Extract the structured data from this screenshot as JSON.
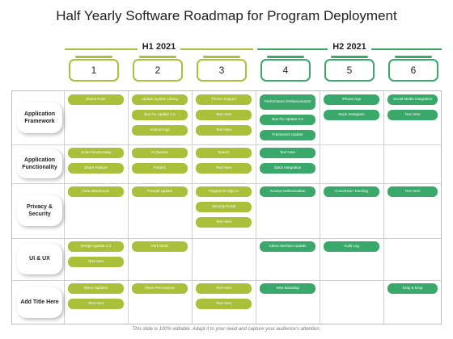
{
  "title": "Half Yearly Software Roadmap for Program Deployment",
  "halves": [
    "H1 2021",
    "H2 2021"
  ],
  "columns": [
    "1",
    "2",
    "3",
    "4",
    "5",
    "6"
  ],
  "colors": {
    "h1": "#aabf3a",
    "h2": "#3aa86b"
  },
  "rows": [
    {
      "label": "Application Framework",
      "cells": [
        [
          "Status Pane"
        ],
        [
          "Update System Library",
          "Bus Fix Update 1.0",
          "Android App"
        ],
        [
          "Theme Support",
          "Text Here",
          "Text Here"
        ],
        [
          "Performance Enhancements",
          "Bus Fix Update 2.0",
          "Framework Update"
        ],
        [
          "iPhone App",
          "Stack Instagram"
        ],
        [
          "Social Media Integration",
          "Text Here"
        ]
      ]
    },
    {
      "label": "Application Functionality",
      "cells": [
        [
          "Undo Functionality",
          "Share Feature"
        ],
        [
          "AI Queries",
          "Folders"
        ],
        [
          "Search",
          "Text Here"
        ],
        [
          "Text Here",
          "Stack Integration"
        ],
        [],
        []
      ]
    },
    {
      "label": "Privacy & Security",
      "cells": [
        [
          "Data Warehouse"
        ],
        [
          "Firewall Update"
        ],
        [
          "Fingerprint Sign In",
          "Security Portal",
          "Text Here"
        ],
        [
          "Access Authentication"
        ],
        [
          "Conversion Tracking"
        ],
        [
          "Text Here"
        ]
      ]
    },
    {
      "label": "UI & UX",
      "cells": [
        [
          "Design Update 1.0",
          "Text Here"
        ],
        [
          "Dark Mode"
        ],
        [],
        [
          "Clean Interface Update"
        ],
        [
          "Audit Log"
        ],
        []
      ]
    },
    {
      "label": "Add Title Here",
      "cells": [
        [
          "Menu Updates",
          "Text Here"
        ],
        [
          "Share Permissions"
        ],
        [
          "Text Here",
          "Text Here"
        ],
        [
          "New Branding"
        ],
        [],
        [
          "Drag & Drop"
        ]
      ]
    }
  ],
  "footer": "This slide is 100% editable. Adapt it to your need and capture your audience's attention."
}
